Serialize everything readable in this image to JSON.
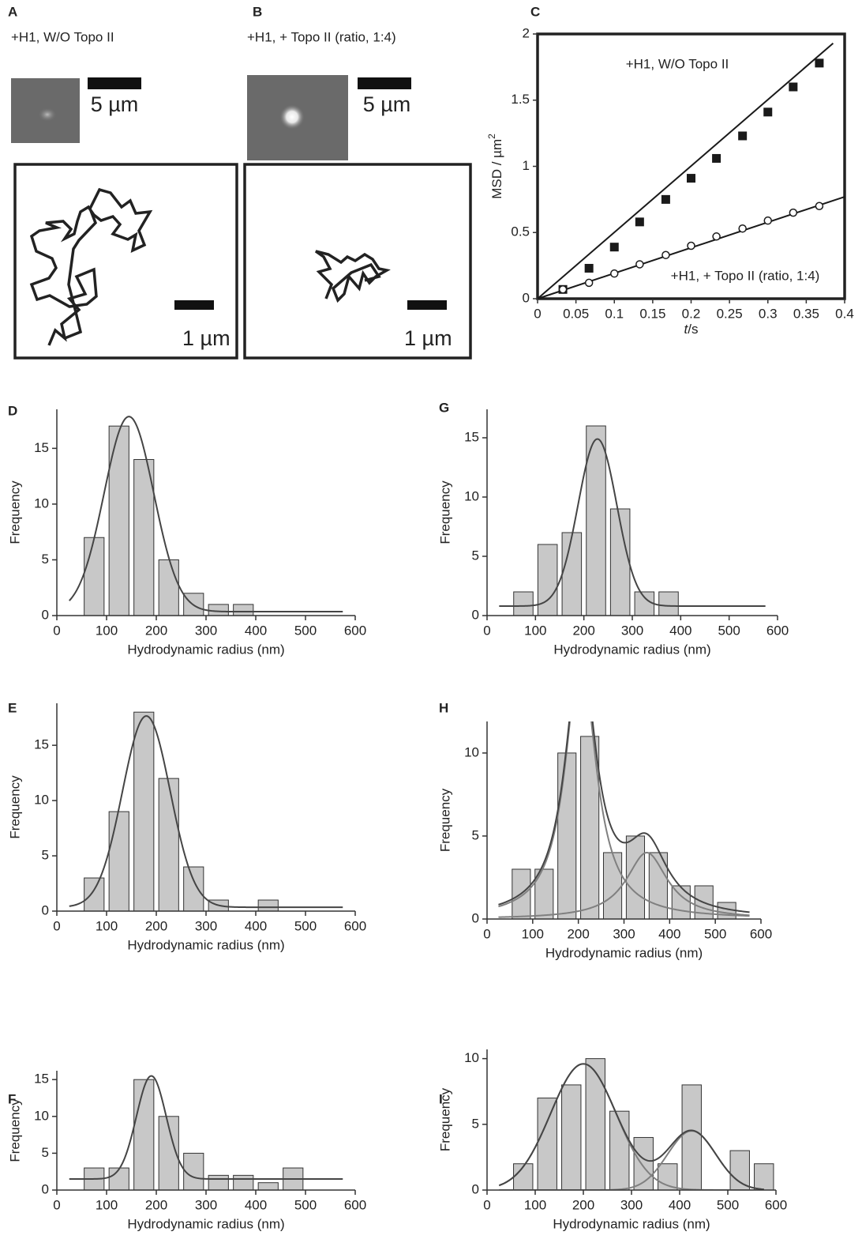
{
  "figure_ab": [
    {
      "label": "A",
      "caption": "+H1, W/O Topo II",
      "image_scale": "5 µm",
      "track_scale": "1 µm"
    },
    {
      "label": "B",
      "caption": "+H1, + Topo II (ratio, 1:4)",
      "image_scale": "5 µm",
      "track_scale": "1 µm"
    }
  ],
  "chart_data": [
    {
      "type": "scatter",
      "panel": "C",
      "xlabel_var": "t",
      "xlabel_unit": "/s",
      "ylabel": "MSD / µm",
      "ylabel_sup": "2",
      "xlim": [
        0,
        0.4
      ],
      "xticks": [
        0,
        0.05,
        0.1,
        0.15,
        0.2,
        0.25,
        0.3,
        0.35,
        0.4
      ],
      "ylim": [
        0,
        2
      ],
      "yticks": [
        0,
        0.5,
        1,
        1.5,
        2
      ],
      "annotations": [
        "+H1, W/O Topo II",
        "+H1, + Topo II (ratio, 1:4)"
      ],
      "series": [
        {
          "marker": "filled-square",
          "color": "#1a1a1a",
          "x": [
            0.033,
            0.067,
            0.1,
            0.133,
            0.167,
            0.2,
            0.233,
            0.267,
            0.3,
            0.333,
            0.367
          ],
          "values": [
            0.07,
            0.23,
            0.39,
            0.58,
            0.75,
            0.91,
            1.06,
            1.23,
            1.41,
            1.6,
            1.78
          ],
          "fit_x": [
            0,
            0.385
          ],
          "fit_values": [
            0,
            1.93
          ]
        },
        {
          "marker": "open-circle",
          "color": "#1a1a1a",
          "x": [
            0.033,
            0.067,
            0.1,
            0.133,
            0.167,
            0.2,
            0.233,
            0.267,
            0.3,
            0.333,
            0.367
          ],
          "values": [
            0.07,
            0.12,
            0.19,
            0.26,
            0.33,
            0.4,
            0.47,
            0.53,
            0.59,
            0.65,
            0.7
          ],
          "fit_x": [
            0,
            0.4
          ],
          "fit_values": [
            0,
            0.77
          ]
        }
      ]
    },
    {
      "type": "histogram",
      "panel": "D",
      "xlabel": "Hydrodynamic radius (nm)",
      "ylabel": "Frequency",
      "color": "#c8c8c8",
      "bins": [
        50,
        100,
        150,
        200,
        250,
        300,
        350,
        400,
        450,
        500,
        550,
        600
      ],
      "values": [
        7,
        17,
        14,
        5,
        2,
        1,
        1,
        0,
        0,
        0,
        0
      ],
      "xlim": [
        0,
        600
      ],
      "xticks": [
        0,
        100,
        200,
        300,
        400,
        500,
        600
      ],
      "ylim": [
        0,
        18.5
      ],
      "yticks": [
        0,
        5,
        10,
        15
      ],
      "fits": [
        {
          "shape": "gaussian",
          "center": 145,
          "amplitude": 17.5,
          "width": 50,
          "offset": 0.35,
          "color": "#454545"
        }
      ]
    },
    {
      "type": "histogram",
      "panel": "G",
      "xlabel": "Hydrodynamic radius (nm)",
      "ylabel": "Frequency",
      "color": "#c8c8c8",
      "bins": [
        50,
        100,
        150,
        200,
        250,
        300,
        350,
        400,
        450,
        500,
        550,
        600
      ],
      "values": [
        2,
        6,
        7,
        16,
        9,
        2,
        2,
        0,
        0,
        0,
        0
      ],
      "xlim": [
        0,
        600
      ],
      "xticks": [
        0,
        100,
        200,
        300,
        400,
        500,
        600
      ],
      "ylim": [
        0,
        17.4
      ],
      "yticks": [
        0,
        5,
        10,
        15
      ],
      "fits": [
        {
          "shape": "gaussian",
          "center": 228,
          "amplitude": 14.1,
          "width": 40,
          "offset": 0.8,
          "color": "#454545"
        }
      ]
    },
    {
      "type": "histogram",
      "panel": "E",
      "xlabel": "Hydrodynamic radius (nm)",
      "ylabel": "Frequency",
      "color": "#c8c8c8",
      "bins": [
        50,
        100,
        150,
        200,
        250,
        300,
        350,
        400,
        450,
        500,
        550,
        600
      ],
      "values": [
        3,
        9,
        18,
        12,
        4,
        1,
        0,
        1,
        0,
        0,
        0
      ],
      "xlim": [
        0,
        600
      ],
      "xticks": [
        0,
        100,
        200,
        300,
        400,
        500,
        600
      ],
      "ylim": [
        0,
        18.8
      ],
      "yticks": [
        0,
        5,
        10,
        15
      ],
      "fits": [
        {
          "shape": "gaussian",
          "center": 180,
          "amplitude": 17.3,
          "width": 48,
          "offset": 0.35,
          "color": "#454545"
        }
      ]
    },
    {
      "type": "histogram",
      "panel": "H",
      "xlabel": "Hydrodynamic radius (nm)",
      "ylabel": "Frequency",
      "color": "#c8c8c8",
      "bins": [
        50,
        100,
        150,
        200,
        250,
        300,
        350,
        400,
        450,
        500,
        550,
        600
      ],
      "values": [
        3,
        3,
        10,
        11,
        4,
        5,
        4,
        2,
        2,
        1,
        0
      ],
      "xlim": [
        0,
        600
      ],
      "xticks": [
        0,
        100,
        200,
        300,
        400,
        500,
        600
      ],
      "ylim": [
        0,
        11.9
      ],
      "yticks": [
        0,
        5,
        10
      ],
      "fits": [
        {
          "shape": "lorentz",
          "center": 205,
          "amplitude": 16,
          "width": 40,
          "offset": 0,
          "color": "#808080"
        },
        {
          "shape": "lorentz",
          "center": 350,
          "amplitude": 4,
          "width": 55,
          "offset": 0,
          "color": "#808080"
        }
      ],
      "fit_sum_color": "#454545"
    },
    {
      "type": "histogram",
      "panel": "F",
      "xlabel": "Hydrodynamic radius (nm)",
      "ylabel": "Frequency",
      "color": "#c8c8c8",
      "bins": [
        50,
        100,
        150,
        200,
        250,
        300,
        350,
        400,
        450,
        500,
        550,
        600
      ],
      "values": [
        3,
        3,
        15,
        10,
        5,
        2,
        2,
        1,
        3,
        0,
        0
      ],
      "xlim": [
        0,
        600
      ],
      "xticks": [
        0,
        100,
        200,
        300,
        400,
        500,
        600
      ],
      "ylim": [
        0,
        16.2
      ],
      "yticks": [
        0,
        5,
        10,
        15
      ],
      "fits": [
        {
          "shape": "gaussian",
          "center": 190,
          "amplitude": 14,
          "width": 30,
          "offset": 1.5,
          "color": "#454545"
        }
      ]
    },
    {
      "type": "histogram",
      "panel": "I",
      "xlabel": "Hydrodynamic radius (nm)",
      "ylabel": "Frequency",
      "color": "#c8c8c8",
      "bins": [
        50,
        100,
        150,
        200,
        250,
        300,
        350,
        400,
        450,
        500,
        550,
        600
      ],
      "values": [
        2,
        7,
        8,
        10,
        6,
        4,
        2,
        8,
        0,
        3,
        2
      ],
      "xlim": [
        0,
        600
      ],
      "xticks": [
        0,
        100,
        200,
        300,
        400,
        500,
        600
      ],
      "ylim": [
        0,
        10.7
      ],
      "yticks": [
        0,
        5,
        10
      ],
      "fits": [
        {
          "shape": "gaussian",
          "center": 200,
          "amplitude": 9.6,
          "width": 68,
          "offset": 0,
          "color": "#808080"
        },
        {
          "shape": "gaussian",
          "center": 425,
          "amplitude": 4.5,
          "width": 50,
          "offset": 0,
          "color": "#808080"
        }
      ],
      "fit_sum_color": "#454545"
    }
  ]
}
